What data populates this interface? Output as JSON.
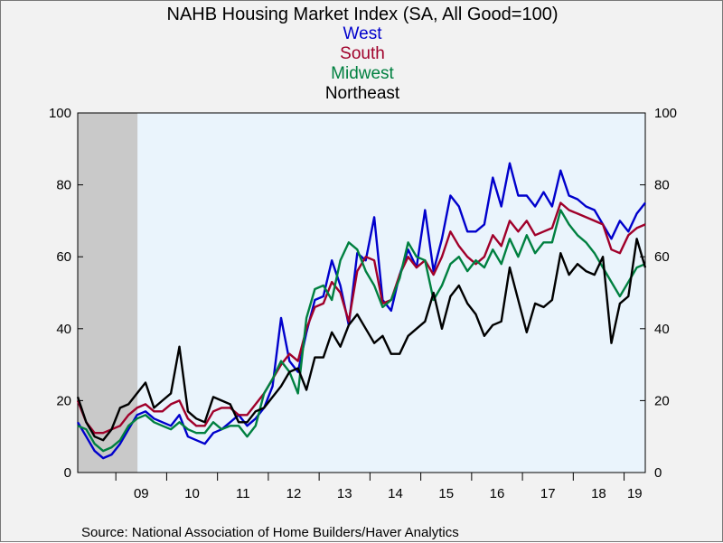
{
  "chart_data": {
    "type": "line",
    "title": "NAHB Housing Market Index (SA, All Good=100)",
    "source": "Source:  National Association of Home Builders/Haver Analytics",
    "x_tick_labels": [
      "09",
      "10",
      "11",
      "12",
      "13",
      "14",
      "15",
      "16",
      "17",
      "18",
      "19"
    ],
    "x_range": [
      "2008-04",
      "2019-06"
    ],
    "recession_shading": {
      "start": "2008-04",
      "end": "2009-06"
    },
    "ylim": [
      0,
      100
    ],
    "y_ticks": [
      0,
      20,
      40,
      60,
      80,
      100
    ],
    "y_tick_labels": [
      "0",
      "20",
      "40",
      "60",
      "80",
      "100"
    ],
    "right_y_ticks": [
      0,
      20,
      40,
      60,
      80,
      100
    ],
    "right_y_tick_labels": [
      "0",
      "20",
      "40",
      "60",
      "80",
      "100"
    ],
    "grid": false,
    "legend_placement": "top-center",
    "series": [
      {
        "name": "West",
        "color": "#0000cc",
        "points": [
          [
            "2008-04",
            14
          ],
          [
            "2008-06",
            10
          ],
          [
            "2008-08",
            6
          ],
          [
            "2008-10",
            4
          ],
          [
            "2008-12",
            5
          ],
          [
            "2009-02",
            8
          ],
          [
            "2009-04",
            12
          ],
          [
            "2009-06",
            16
          ],
          [
            "2009-08",
            17
          ],
          [
            "2009-10",
            15
          ],
          [
            "2009-12",
            14
          ],
          [
            "2010-02",
            13
          ],
          [
            "2010-04",
            16
          ],
          [
            "2010-06",
            10
          ],
          [
            "2010-08",
            9
          ],
          [
            "2010-10",
            8
          ],
          [
            "2010-12",
            11
          ],
          [
            "2011-02",
            12
          ],
          [
            "2011-04",
            14
          ],
          [
            "2011-06",
            16
          ],
          [
            "2011-08",
            13
          ],
          [
            "2011-10",
            15
          ],
          [
            "2011-12",
            18
          ],
          [
            "2012-02",
            24
          ],
          [
            "2012-04",
            43
          ],
          [
            "2012-06",
            31
          ],
          [
            "2012-08",
            28
          ],
          [
            "2012-10",
            39
          ],
          [
            "2012-12",
            48
          ],
          [
            "2013-02",
            49
          ],
          [
            "2013-04",
            59
          ],
          [
            "2013-06",
            52
          ],
          [
            "2013-08",
            41
          ],
          [
            "2013-10",
            61
          ],
          [
            "2013-12",
            59
          ],
          [
            "2014-02",
            71
          ],
          [
            "2014-04",
            48
          ],
          [
            "2014-06",
            45
          ],
          [
            "2014-08",
            55
          ],
          [
            "2014-10",
            62
          ],
          [
            "2014-12",
            57
          ],
          [
            "2015-02",
            73
          ],
          [
            "2015-04",
            56
          ],
          [
            "2015-06",
            65
          ],
          [
            "2015-08",
            77
          ],
          [
            "2015-10",
            74
          ],
          [
            "2015-12",
            67
          ],
          [
            "2016-02",
            67
          ],
          [
            "2016-04",
            69
          ],
          [
            "2016-06",
            82
          ],
          [
            "2016-08",
            74
          ],
          [
            "2016-10",
            86
          ],
          [
            "2016-12",
            77
          ],
          [
            "2017-02",
            77
          ],
          [
            "2017-04",
            74
          ],
          [
            "2017-06",
            78
          ],
          [
            "2017-08",
            74
          ],
          [
            "2017-10",
            84
          ],
          [
            "2017-12",
            77
          ],
          [
            "2018-02",
            76
          ],
          [
            "2018-04",
            74
          ],
          [
            "2018-06",
            73
          ],
          [
            "2018-08",
            69
          ],
          [
            "2018-10",
            65
          ],
          [
            "2018-12",
            70
          ],
          [
            "2019-02",
            67
          ],
          [
            "2019-04",
            72
          ],
          [
            "2019-06",
            75
          ]
        ]
      },
      {
        "name": "South",
        "color": "#a0002a",
        "points": [
          [
            "2008-04",
            20
          ],
          [
            "2008-06",
            14
          ],
          [
            "2008-08",
            11
          ],
          [
            "2008-10",
            11
          ],
          [
            "2008-12",
            12
          ],
          [
            "2009-02",
            13
          ],
          [
            "2009-04",
            16
          ],
          [
            "2009-06",
            18
          ],
          [
            "2009-08",
            19
          ],
          [
            "2009-10",
            17
          ],
          [
            "2009-12",
            17
          ],
          [
            "2010-02",
            19
          ],
          [
            "2010-04",
            20
          ],
          [
            "2010-06",
            15
          ],
          [
            "2010-08",
            13
          ],
          [
            "2010-10",
            13
          ],
          [
            "2010-12",
            17
          ],
          [
            "2011-02",
            18
          ],
          [
            "2011-04",
            18
          ],
          [
            "2011-06",
            16
          ],
          [
            "2011-08",
            16
          ],
          [
            "2011-10",
            19
          ],
          [
            "2011-12",
            22
          ],
          [
            "2012-02",
            26
          ],
          [
            "2012-04",
            30
          ],
          [
            "2012-06",
            33
          ],
          [
            "2012-08",
            31
          ],
          [
            "2012-10",
            40
          ],
          [
            "2012-12",
            46
          ],
          [
            "2013-02",
            47
          ],
          [
            "2013-04",
            53
          ],
          [
            "2013-06",
            50
          ],
          [
            "2013-08",
            42
          ],
          [
            "2013-10",
            56
          ],
          [
            "2013-12",
            60
          ],
          [
            "2014-02",
            59
          ],
          [
            "2014-04",
            47
          ],
          [
            "2014-06",
            48
          ],
          [
            "2014-08",
            55
          ],
          [
            "2014-10",
            60
          ],
          [
            "2014-12",
            57
          ],
          [
            "2015-02",
            59
          ],
          [
            "2015-04",
            55
          ],
          [
            "2015-06",
            60
          ],
          [
            "2015-08",
            67
          ],
          [
            "2015-10",
            63
          ],
          [
            "2015-12",
            60
          ],
          [
            "2016-02",
            58
          ],
          [
            "2016-04",
            60
          ],
          [
            "2016-06",
            66
          ],
          [
            "2016-08",
            63
          ],
          [
            "2016-10",
            70
          ],
          [
            "2016-12",
            67
          ],
          [
            "2017-02",
            70
          ],
          [
            "2017-04",
            66
          ],
          [
            "2017-06",
            67
          ],
          [
            "2017-08",
            68
          ],
          [
            "2017-10",
            75
          ],
          [
            "2017-12",
            73
          ],
          [
            "2018-02",
            72
          ],
          [
            "2018-04",
            71
          ],
          [
            "2018-06",
            70
          ],
          [
            "2018-08",
            69
          ],
          [
            "2018-10",
            62
          ],
          [
            "2018-12",
            61
          ],
          [
            "2019-02",
            66
          ],
          [
            "2019-04",
            68
          ],
          [
            "2019-06",
            69
          ]
        ]
      },
      {
        "name": "Midwest",
        "color": "#008040",
        "points": [
          [
            "2008-04",
            13
          ],
          [
            "2008-06",
            12
          ],
          [
            "2008-08",
            8
          ],
          [
            "2008-10",
            6
          ],
          [
            "2008-12",
            7
          ],
          [
            "2009-02",
            9
          ],
          [
            "2009-04",
            13
          ],
          [
            "2009-06",
            15
          ],
          [
            "2009-08",
            16
          ],
          [
            "2009-10",
            14
          ],
          [
            "2009-12",
            13
          ],
          [
            "2010-02",
            12
          ],
          [
            "2010-04",
            14
          ],
          [
            "2010-06",
            12
          ],
          [
            "2010-08",
            11
          ],
          [
            "2010-10",
            11
          ],
          [
            "2010-12",
            14
          ],
          [
            "2011-02",
            12
          ],
          [
            "2011-04",
            13
          ],
          [
            "2011-06",
            13
          ],
          [
            "2011-08",
            10
          ],
          [
            "2011-10",
            13
          ],
          [
            "2011-12",
            22
          ],
          [
            "2012-02",
            26
          ],
          [
            "2012-04",
            31
          ],
          [
            "2012-06",
            28
          ],
          [
            "2012-08",
            22
          ],
          [
            "2012-10",
            43
          ],
          [
            "2012-12",
            51
          ],
          [
            "2013-02",
            52
          ],
          [
            "2013-04",
            48
          ],
          [
            "2013-06",
            59
          ],
          [
            "2013-08",
            64
          ],
          [
            "2013-10",
            62
          ],
          [
            "2013-12",
            56
          ],
          [
            "2014-02",
            52
          ],
          [
            "2014-04",
            46
          ],
          [
            "2014-06",
            48
          ],
          [
            "2014-08",
            54
          ],
          [
            "2014-10",
            64
          ],
          [
            "2014-12",
            60
          ],
          [
            "2015-02",
            59
          ],
          [
            "2015-04",
            48
          ],
          [
            "2015-06",
            52
          ],
          [
            "2015-08",
            58
          ],
          [
            "2015-10",
            60
          ],
          [
            "2015-12",
            56
          ],
          [
            "2016-02",
            59
          ],
          [
            "2016-04",
            57
          ],
          [
            "2016-06",
            62
          ],
          [
            "2016-08",
            58
          ],
          [
            "2016-10",
            65
          ],
          [
            "2016-12",
            60
          ],
          [
            "2017-02",
            66
          ],
          [
            "2017-04",
            61
          ],
          [
            "2017-06",
            64
          ],
          [
            "2017-08",
            64
          ],
          [
            "2017-10",
            73
          ],
          [
            "2017-12",
            69
          ],
          [
            "2018-02",
            66
          ],
          [
            "2018-04",
            64
          ],
          [
            "2018-06",
            61
          ],
          [
            "2018-08",
            57
          ],
          [
            "2018-10",
            53
          ],
          [
            "2018-12",
            49
          ],
          [
            "2019-02",
            53
          ],
          [
            "2019-04",
            57
          ],
          [
            "2019-06",
            58
          ]
        ]
      },
      {
        "name": "Northeast",
        "color": "#000000",
        "points": [
          [
            "2008-04",
            21
          ],
          [
            "2008-06",
            14
          ],
          [
            "2008-08",
            10
          ],
          [
            "2008-10",
            9
          ],
          [
            "2008-12",
            12
          ],
          [
            "2009-02",
            18
          ],
          [
            "2009-04",
            19
          ],
          [
            "2009-06",
            22
          ],
          [
            "2009-08",
            25
          ],
          [
            "2009-10",
            18
          ],
          [
            "2009-12",
            20
          ],
          [
            "2010-02",
            22
          ],
          [
            "2010-04",
            35
          ],
          [
            "2010-06",
            17
          ],
          [
            "2010-08",
            15
          ],
          [
            "2010-10",
            14
          ],
          [
            "2010-12",
            21
          ],
          [
            "2011-02",
            20
          ],
          [
            "2011-04",
            19
          ],
          [
            "2011-06",
            14
          ],
          [
            "2011-08",
            14
          ],
          [
            "2011-10",
            17
          ],
          [
            "2011-12",
            18
          ],
          [
            "2012-02",
            21
          ],
          [
            "2012-04",
            24
          ],
          [
            "2012-06",
            28
          ],
          [
            "2012-08",
            29
          ],
          [
            "2012-10",
            23
          ],
          [
            "2012-12",
            32
          ],
          [
            "2013-02",
            32
          ],
          [
            "2013-04",
            39
          ],
          [
            "2013-06",
            35
          ],
          [
            "2013-08",
            41
          ],
          [
            "2013-10",
            44
          ],
          [
            "2013-12",
            40
          ],
          [
            "2014-02",
            36
          ],
          [
            "2014-04",
            38
          ],
          [
            "2014-06",
            33
          ],
          [
            "2014-08",
            33
          ],
          [
            "2014-10",
            38
          ],
          [
            "2014-12",
            40
          ],
          [
            "2015-02",
            42
          ],
          [
            "2015-04",
            50
          ],
          [
            "2015-06",
            40
          ],
          [
            "2015-08",
            49
          ],
          [
            "2015-10",
            52
          ],
          [
            "2015-12",
            47
          ],
          [
            "2016-02",
            44
          ],
          [
            "2016-04",
            38
          ],
          [
            "2016-06",
            41
          ],
          [
            "2016-08",
            42
          ],
          [
            "2016-10",
            57
          ],
          [
            "2016-12",
            48
          ],
          [
            "2017-02",
            39
          ],
          [
            "2017-04",
            47
          ],
          [
            "2017-06",
            46
          ],
          [
            "2017-08",
            48
          ],
          [
            "2017-10",
            61
          ],
          [
            "2017-12",
            55
          ],
          [
            "2018-02",
            58
          ],
          [
            "2018-04",
            56
          ],
          [
            "2018-06",
            55
          ],
          [
            "2018-08",
            60
          ],
          [
            "2018-10",
            36
          ],
          [
            "2018-12",
            47
          ],
          [
            "2019-02",
            49
          ],
          [
            "2019-04",
            65
          ],
          [
            "2019-06",
            57
          ]
        ]
      }
    ]
  }
}
